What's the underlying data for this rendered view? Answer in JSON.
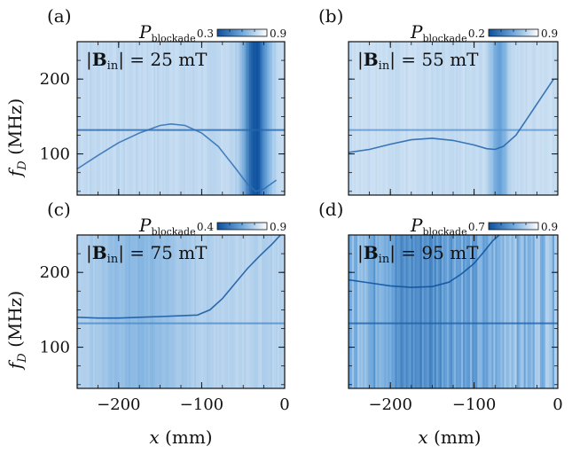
{
  "chart_data": {
    "type": "heatmap",
    "shared": {
      "xlabel": "x (mm)",
      "ylabel": "f_D (MHz)",
      "xlim": [
        -250,
        0
      ],
      "ylim": [
        45,
        250
      ],
      "xticks": [
        -200,
        -100,
        0
      ],
      "yticks": [
        100,
        200
      ],
      "colorbar_label": "P_blockade",
      "colormap": [
        "#0b4f9c",
        "#6fa8dc",
        "#ffffff"
      ]
    },
    "panels": [
      {
        "panel_label": "(a)",
        "field_label": "|Bin| = 25 mT",
        "field_mT": 25,
        "colorbar_min": "0.3",
        "colorbar_max": "0.9",
        "background": 0.22,
        "horizontal_line": {
          "f": 132,
          "strength": 0.45
        },
        "vertical_bands": [
          {
            "x": -35,
            "width": 14,
            "strength": 0.75
          }
        ],
        "curve": [
          [
            -250,
            80
          ],
          [
            -225,
            98
          ],
          [
            -200,
            115
          ],
          [
            -175,
            128
          ],
          [
            -150,
            138
          ],
          [
            -137,
            140
          ],
          [
            -120,
            138
          ],
          [
            -100,
            128
          ],
          [
            -80,
            110
          ],
          [
            -60,
            82
          ],
          [
            -45,
            60
          ],
          [
            -35,
            50
          ],
          [
            -25,
            53
          ],
          [
            -10,
            65
          ]
        ],
        "curve_strength": 0.35
      },
      {
        "panel_label": "(b)",
        "field_label": "|Bin| = 55 mT",
        "field_mT": 55,
        "colorbar_min": "0.2",
        "colorbar_max": "0.9",
        "background": 0.2,
        "horizontal_line": {
          "f": 132,
          "strength": 0.2
        },
        "vertical_bands": [
          {
            "x": -70,
            "width": 10,
            "strength": 0.35
          }
        ],
        "curve": [
          [
            -250,
            102
          ],
          [
            -225,
            106
          ],
          [
            -200,
            113
          ],
          [
            -175,
            119
          ],
          [
            -150,
            121
          ],
          [
            -125,
            118
          ],
          [
            -100,
            112
          ],
          [
            -85,
            107
          ],
          [
            -75,
            106
          ],
          [
            -65,
            110
          ],
          [
            -50,
            125
          ],
          [
            -35,
            150
          ],
          [
            -20,
            175
          ],
          [
            -5,
            200
          ]
        ],
        "curve_strength": 0.45
      },
      {
        "panel_label": "(c)",
        "field_label": "|Bin| = 75 mT",
        "field_mT": 75,
        "colorbar_min": "0.4",
        "colorbar_max": "0.9",
        "background": 0.26,
        "horizontal_line": {
          "f": 132,
          "strength": 0.2
        },
        "vertical_bands": [
          {
            "x": -175,
            "width": 50,
            "strength": 0.15
          }
        ],
        "curve": [
          [
            -250,
            140
          ],
          [
            -225,
            139
          ],
          [
            -200,
            139
          ],
          [
            -175,
            140
          ],
          [
            -150,
            141
          ],
          [
            -125,
            142
          ],
          [
            -105,
            143
          ],
          [
            -90,
            150
          ],
          [
            -75,
            165
          ],
          [
            -60,
            185
          ],
          [
            -45,
            205
          ],
          [
            -30,
            222
          ],
          [
            -15,
            238
          ],
          [
            -5,
            250
          ]
        ],
        "curve_strength": 0.45
      },
      {
        "panel_label": "(d)",
        "field_label": "|Bin| = 95 mT",
        "field_mT": 95,
        "colorbar_min": "0.7",
        "colorbar_max": "0.9",
        "background": 0.4,
        "horizontal_line": {
          "f": 132,
          "strength": 0.3
        },
        "vertical_bands": [
          {
            "x": -160,
            "width": 60,
            "strength": 0.25
          }
        ],
        "curve": [
          [
            -250,
            190
          ],
          [
            -225,
            186
          ],
          [
            -200,
            182
          ],
          [
            -175,
            180
          ],
          [
            -150,
            181
          ],
          [
            -130,
            187
          ],
          [
            -115,
            198
          ],
          [
            -100,
            212
          ],
          [
            -88,
            228
          ],
          [
            -78,
            242
          ],
          [
            -70,
            250
          ]
        ],
        "curve_strength": 0.5
      }
    ]
  }
}
